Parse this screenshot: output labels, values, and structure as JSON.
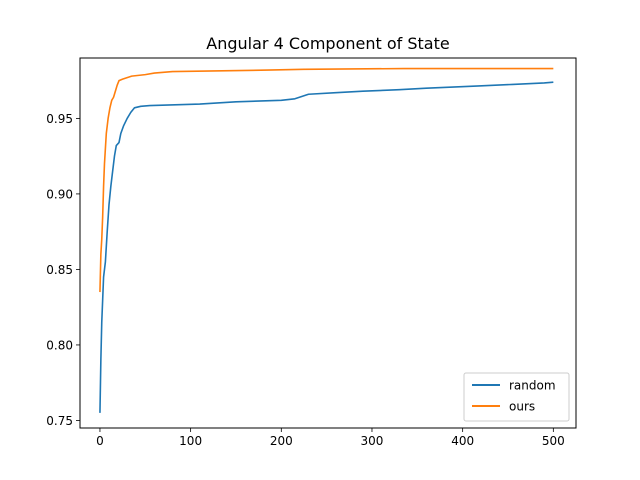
{
  "chart_data": {
    "type": "line",
    "title": "Angular 4 Component of State",
    "xlabel": "",
    "ylabel": "",
    "xlim": [
      -22,
      525
    ],
    "ylim": [
      0.745,
      0.99
    ],
    "xticks": [
      0,
      100,
      200,
      300,
      400,
      500
    ],
    "yticks": [
      0.75,
      0.8,
      0.85,
      0.9,
      0.95
    ],
    "ytick_labels": [
      "0.75",
      "0.80",
      "0.85",
      "0.90",
      "0.95"
    ],
    "grid": false,
    "legend_position": "lower-right",
    "series": [
      {
        "name": "random",
        "color": "#1f77b4",
        "points": [
          [
            0,
            0.755
          ],
          [
            1,
            0.79
          ],
          [
            2,
            0.815
          ],
          [
            3,
            0.83
          ],
          [
            4,
            0.845
          ],
          [
            6,
            0.855
          ],
          [
            8,
            0.875
          ],
          [
            10,
            0.893
          ],
          [
            12,
            0.905
          ],
          [
            14,
            0.915
          ],
          [
            16,
            0.925
          ],
          [
            18,
            0.932
          ],
          [
            21,
            0.934
          ],
          [
            23,
            0.94
          ],
          [
            26,
            0.945
          ],
          [
            30,
            0.95
          ],
          [
            34,
            0.954
          ],
          [
            38,
            0.957
          ],
          [
            45,
            0.958
          ],
          [
            55,
            0.9585
          ],
          [
            110,
            0.9595
          ],
          [
            150,
            0.961
          ],
          [
            200,
            0.962
          ],
          [
            215,
            0.963
          ],
          [
            220,
            0.964
          ],
          [
            225,
            0.965
          ],
          [
            230,
            0.966
          ],
          [
            260,
            0.967
          ],
          [
            290,
            0.968
          ],
          [
            330,
            0.969
          ],
          [
            360,
            0.97
          ],
          [
            418,
            0.9715
          ],
          [
            455,
            0.9725
          ],
          [
            490,
            0.9735
          ],
          [
            500,
            0.974
          ]
        ]
      },
      {
        "name": "ours",
        "color": "#ff7f0e",
        "points": [
          [
            0,
            0.835
          ],
          [
            1,
            0.86
          ],
          [
            2,
            0.87
          ],
          [
            3,
            0.885
          ],
          [
            4,
            0.905
          ],
          [
            5,
            0.92
          ],
          [
            6,
            0.93
          ],
          [
            7,
            0.94
          ],
          [
            9,
            0.95
          ],
          [
            11,
            0.957
          ],
          [
            13,
            0.962
          ],
          [
            15,
            0.964
          ],
          [
            17,
            0.968
          ],
          [
            19,
            0.972
          ],
          [
            21,
            0.975
          ],
          [
            25,
            0.976
          ],
          [
            30,
            0.977
          ],
          [
            35,
            0.978
          ],
          [
            50,
            0.979
          ],
          [
            60,
            0.98
          ],
          [
            80,
            0.981
          ],
          [
            185,
            0.982
          ],
          [
            225,
            0.9825
          ],
          [
            335,
            0.983
          ],
          [
            500,
            0.983
          ]
        ]
      }
    ]
  }
}
